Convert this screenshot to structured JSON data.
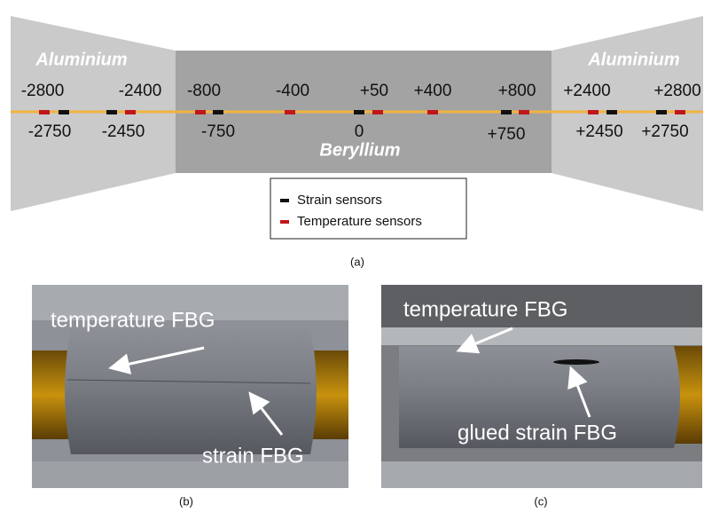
{
  "diagram": {
    "regions": {
      "left": "Aluminium",
      "center": "Beryllium",
      "right": "Aluminium"
    },
    "top_labels": [
      "-2800",
      "-2400",
      "-800",
      "-400",
      "+50",
      "+400",
      "+800",
      "+2400",
      "+2800"
    ],
    "bottom_labels": [
      "-2750",
      "-2450",
      "-750",
      "0",
      "+750",
      "+2450",
      "+2750"
    ],
    "legend": [
      "Strain sensors",
      "Temperature sensors"
    ],
    "caption": "(a)"
  },
  "photo_b": {
    "labels": [
      "temperature FBG",
      "strain FBG"
    ],
    "caption": "(b)"
  },
  "photo_c": {
    "labels": [
      "temperature FBG",
      "glued strain FBG"
    ],
    "caption": "(c)"
  }
}
